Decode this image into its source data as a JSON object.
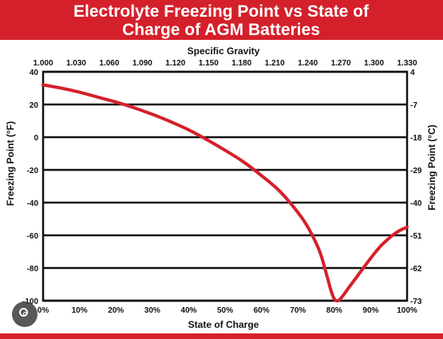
{
  "title_lines": [
    "Electrolyte Freezing Point vs State of",
    "Charge of AGM Batteries"
  ],
  "chart_data": {
    "type": "line",
    "title": "Electrolyte Freezing Point vs State of Charge of AGM Batteries",
    "xlabel": "State of Charge",
    "x_top_label": "Specific Gravity",
    "ylabel_left": "Freezing Point (°F)",
    "ylabel_right": "Freezing Point (°C)",
    "xlim": [
      0,
      100
    ],
    "ylim": [
      -100,
      40
    ],
    "x_ticks": [
      "0%",
      "10%",
      "20%",
      "30%",
      "40%",
      "50%",
      "60%",
      "70%",
      "80%",
      "90%",
      "100%"
    ],
    "x_tick_values": [
      0,
      10,
      20,
      30,
      40,
      50,
      60,
      70,
      80,
      90,
      100
    ],
    "x_top_ticks": [
      "1.000",
      "1.030",
      "1.060",
      "1.090",
      "1.120",
      "1.150",
      "1.180",
      "1.210",
      "1.240",
      "1.270",
      "1.300",
      "1.330"
    ],
    "y_left_ticks": [
      "40",
      "20",
      "0",
      "-20",
      "-40",
      "-60",
      "-80",
      "-100"
    ],
    "y_left_values": [
      40,
      20,
      0,
      -20,
      -40,
      -60,
      -80,
      -100
    ],
    "y_right_ticks": [
      "4",
      "-7",
      "-18",
      "-29",
      "-40",
      "-51",
      "-62",
      "-73"
    ],
    "grid": "horizontal",
    "line_color": "#d4202b",
    "series": [
      {
        "x": [
          0,
          5,
          10,
          15,
          20,
          25,
          30,
          35,
          40,
          45,
          50,
          55,
          60,
          65,
          70,
          73,
          76,
          78,
          79,
          80,
          81,
          82,
          84,
          87,
          90,
          93,
          96,
          98,
          100
        ],
        "values": [
          32,
          30,
          27.5,
          24.5,
          21.5,
          18,
          14,
          9.5,
          4.5,
          -1.5,
          -8,
          -15,
          -23.5,
          -33,
          -46,
          -56,
          -70,
          -85,
          -93,
          -99,
          -100,
          -98,
          -92,
          -83,
          -74,
          -66,
          -60,
          -57,
          -55
        ]
      }
    ]
  }
}
